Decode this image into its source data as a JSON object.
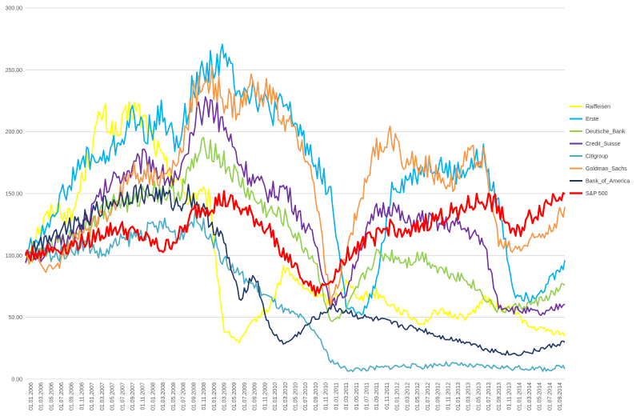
{
  "chart_data": {
    "type": "line",
    "title": "",
    "xlabel": "",
    "ylabel": "",
    "ylim": [
      0,
      300
    ],
    "y_ticks": [
      "0.00",
      "50.00",
      "100.00",
      "150.00",
      "200.00",
      "250.00",
      "300.00"
    ],
    "grid": "horizontal",
    "legend_position": "right",
    "x_tick_labels": [
      "01.01.2006",
      "01.03.2006",
      "01.05.2006",
      "01.07.2006",
      "01.09.2006",
      "01.11.2006",
      "01.01.2007",
      "01.03.2007",
      "01.05.2007",
      "01.07.2007",
      "01.09.2007",
      "01.11.2007",
      "01.01.2008",
      "01.03.2008",
      "01.05.2008",
      "01.07.2008",
      "01.09.2008",
      "01.11.2008",
      "01.01.2009",
      "01.03.2009",
      "01.05.2009",
      "01.07.2009",
      "01.09.2009",
      "01.11.2009",
      "01.01.2010",
      "01.03.2010",
      "01.05.2010",
      "01.07.2010",
      "01.09.2010",
      "01.11.2010",
      "01.01.2011",
      "01.03.2011",
      "01.05.2011",
      "01.07.2011",
      "01.09.2011",
      "01.11.2011",
      "01.01.2012",
      "01.03.2012",
      "01.05.2012",
      "01.07.2012",
      "01.09.2012",
      "01.11.2012",
      "01.01.2013",
      "01.03.2013",
      "01.05.2013",
      "01.07.2013",
      "01.09.2013",
      "01.11.2013",
      "01.01.2014",
      "01.03.2014",
      "01.05.2014",
      "01.07.2014",
      "01.09.2014"
    ],
    "x_months": [
      0,
      3,
      6,
      9,
      12,
      15,
      18,
      21,
      24,
      27,
      30,
      32,
      33,
      36,
      39,
      42,
      45,
      48,
      51,
      54,
      57,
      60,
      63,
      66,
      69,
      72,
      75,
      78,
      81,
      84,
      87,
      90,
      93,
      96,
      99,
      102,
      106
    ],
    "series": [
      {
        "name": "Raiffeisen",
        "color": "#FFFF00",
        "values": [
          100,
          125,
          140,
          130,
          175,
          215,
          195,
          220,
          205,
          175,
          160,
          145,
          150,
          145,
          40,
          30,
          48,
          58,
          90,
          75,
          70,
          62,
          78,
          66,
          70,
          60,
          52,
          45,
          55,
          52,
          50,
          65,
          58,
          56,
          42,
          40,
          36
        ]
      },
      {
        "name": "Erste",
        "color": "#00B0F0",
        "values": [
          105,
          115,
          140,
          160,
          180,
          175,
          190,
          210,
          200,
          215,
          185,
          225,
          235,
          255,
          258,
          238,
          232,
          215,
          220,
          200,
          175,
          150,
          60,
          50,
          78,
          155,
          160,
          170,
          175,
          165,
          170,
          180,
          140,
          70,
          65,
          75,
          92
        ]
      },
      {
        "name": "Deutsche_Bank",
        "color": "#92D050",
        "values": [
          98,
          102,
          110,
          115,
          125,
          135,
          145,
          140,
          155,
          150,
          150,
          165,
          175,
          190,
          175,
          160,
          145,
          135,
          130,
          110,
          95,
          45,
          55,
          80,
          100,
          100,
          95,
          100,
          90,
          85,
          80,
          68,
          55,
          58,
          60,
          65,
          75
        ]
      },
      {
        "name": "Credit_Suisse",
        "color": "#7030A0",
        "values": [
          100,
          100,
          110,
          115,
          130,
          150,
          165,
          170,
          180,
          165,
          160,
          180,
          205,
          225,
          205,
          175,
          160,
          150,
          155,
          130,
          110,
          60,
          70,
          110,
          135,
          140,
          125,
          130,
          125,
          125,
          120,
          110,
          60,
          56,
          55,
          52,
          62
        ]
      },
      {
        "name": "Citigroup",
        "color": "#4BACC6",
        "values": [
          98,
          102,
          100,
          105,
          110,
          100,
          110,
          115,
          120,
          125,
          115,
          125,
          130,
          120,
          95,
          85,
          75,
          65,
          55,
          50,
          38,
          15,
          8,
          8,
          9,
          10,
          11,
          10,
          12,
          12,
          11,
          10,
          10,
          9,
          9,
          8,
          10
        ]
      },
      {
        "name": "Goldman_Sachs",
        "color": "#F79646",
        "values": [
          100,
          92,
          90,
          110,
          120,
          130,
          145,
          170,
          165,
          160,
          175,
          210,
          230,
          245,
          225,
          215,
          240,
          230,
          205,
          195,
          150,
          60,
          100,
          150,
          185,
          195,
          175,
          175,
          165,
          160,
          180,
          180,
          110,
          105,
          110,
          120,
          135
        ]
      },
      {
        "name": "Bank_of_America",
        "color": "#1F3864",
        "values": [
          100,
          110,
          120,
          125,
          130,
          140,
          145,
          150,
          150,
          148,
          140,
          150,
          145,
          130,
          110,
          65,
          85,
          40,
          28,
          38,
          50,
          58,
          55,
          50,
          48,
          45,
          42,
          40,
          35,
          32,
          30,
          25,
          22,
          20,
          22,
          25,
          30
        ]
      },
      {
        "name": "S&P 500",
        "color": "#FF0000",
        "values": [
          100,
          103,
          105,
          108,
          112,
          118,
          122,
          118,
          112,
          105,
          115,
          125,
          135,
          140,
          145,
          138,
          130,
          120,
          100,
          85,
          70,
          80,
          100,
          110,
          115,
          125,
          115,
          125,
          130,
          135,
          140,
          145,
          140,
          115,
          130,
          140,
          155
        ]
      }
    ]
  }
}
